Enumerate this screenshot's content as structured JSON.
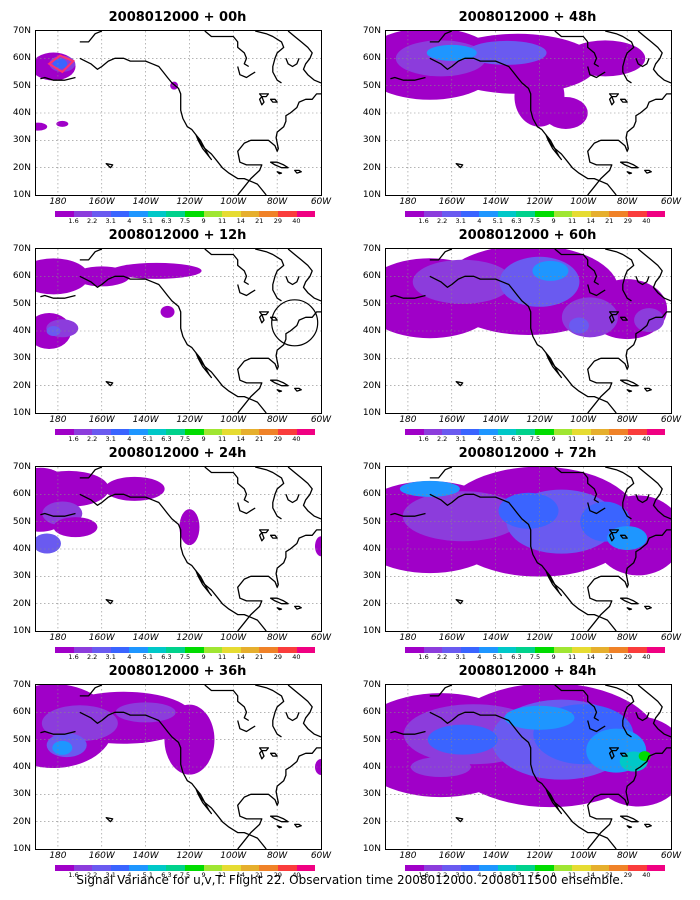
{
  "panels": [
    {
      "title": "2008012000 + 00h",
      "stage": 0,
      "circle": false,
      "box": true
    },
    {
      "title": "2008012000 + 48h",
      "stage": 4,
      "circle": false,
      "box": false
    },
    {
      "title": "2008012000 + 12h",
      "stage": 1,
      "circle": true,
      "box": false
    },
    {
      "title": "2008012000 + 60h",
      "stage": 5,
      "circle": false,
      "box": false
    },
    {
      "title": "2008012000 + 24h",
      "stage": 2,
      "circle": false,
      "box": false
    },
    {
      "title": "2008012000 + 72h",
      "stage": 6,
      "circle": false,
      "box": false
    },
    {
      "title": "2008012000 + 36h",
      "stage": 3,
      "circle": false,
      "box": false
    },
    {
      "title": "2008012000 + 84h",
      "stage": 7,
      "circle": false,
      "box": false
    }
  ],
  "lat_labels": [
    "70N",
    "60N",
    "50N",
    "40N",
    "30N",
    "20N",
    "10N"
  ],
  "lon_labels": [
    "180",
    "160W",
    "140W",
    "120W",
    "100W",
    "80W",
    "60W"
  ],
  "colorbar": {
    "labels": [
      "1.6",
      "2.2",
      "3.1",
      "4",
      "5.1",
      "6.3",
      "7.5",
      "9",
      "11",
      "14",
      "21",
      "29",
      "40"
    ],
    "colors": [
      "#a000c8",
      "#8c3cdc",
      "#6a5af0",
      "#3a64ff",
      "#1e96ff",
      "#00c8c8",
      "#00d28c",
      "#00dc00",
      "#a0e632",
      "#e6dc32",
      "#e6af2d",
      "#f08228",
      "#fa3c3c",
      "#f00082"
    ]
  },
  "caption": "Signal Variance for u,v,T. Flight 22. Observation time 2008012000. 2008011500 ensemble."
}
